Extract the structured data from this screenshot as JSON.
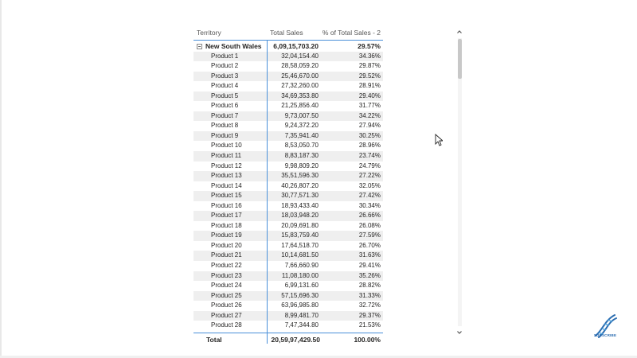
{
  "table": {
    "headers": [
      "Territory",
      "Total Sales",
      "% of Total Sales - 2"
    ],
    "group": {
      "name": "New South Wales",
      "sales": "6,09,15,703.20",
      "pct": "29.57%"
    },
    "rows": [
      {
        "name": "Product 1",
        "sales": "32,04,154.40",
        "pct": "34.36%"
      },
      {
        "name": "Product 2",
        "sales": "28,58,059.20",
        "pct": "29.87%"
      },
      {
        "name": "Product 3",
        "sales": "25,46,670.00",
        "pct": "29.52%"
      },
      {
        "name": "Product 4",
        "sales": "27,32,260.00",
        "pct": "28.91%"
      },
      {
        "name": "Product 5",
        "sales": "34,69,353.80",
        "pct": "29.40%"
      },
      {
        "name": "Product 6",
        "sales": "21,25,856.40",
        "pct": "31.77%"
      },
      {
        "name": "Product 7",
        "sales": "9,73,007.50",
        "pct": "34.22%"
      },
      {
        "name": "Product 8",
        "sales": "9,24,372.20",
        "pct": "27.94%"
      },
      {
        "name": "Product 9",
        "sales": "7,35,941.40",
        "pct": "30.25%"
      },
      {
        "name": "Product 10",
        "sales": "8,53,050.70",
        "pct": "28.96%"
      },
      {
        "name": "Product 11",
        "sales": "8,83,187.30",
        "pct": "23.74%"
      },
      {
        "name": "Product 12",
        "sales": "9,98,809.20",
        "pct": "24.79%"
      },
      {
        "name": "Product 13",
        "sales": "35,51,596.30",
        "pct": "27.22%"
      },
      {
        "name": "Product 14",
        "sales": "40,26,807.20",
        "pct": "32.05%"
      },
      {
        "name": "Product 15",
        "sales": "30,77,571.30",
        "pct": "27.42%"
      },
      {
        "name": "Product 16",
        "sales": "18,93,433.40",
        "pct": "30.34%"
      },
      {
        "name": "Product 17",
        "sales": "18,03,948.20",
        "pct": "26.66%"
      },
      {
        "name": "Product 18",
        "sales": "20,09,691.80",
        "pct": "26.08%"
      },
      {
        "name": "Product 19",
        "sales": "15,83,759.40",
        "pct": "27.59%"
      },
      {
        "name": "Product 20",
        "sales": "17,64,518.70",
        "pct": "26.70%"
      },
      {
        "name": "Product 21",
        "sales": "10,14,681.50",
        "pct": "31.63%"
      },
      {
        "name": "Product 22",
        "sales": "7,66,660.90",
        "pct": "29.41%"
      },
      {
        "name": "Product 23",
        "sales": "11,08,180.00",
        "pct": "35.26%"
      },
      {
        "name": "Product 24",
        "sales": "6,99,131.60",
        "pct": "28.82%"
      },
      {
        "name": "Product 25",
        "sales": "57,15,696.30",
        "pct": "31.33%"
      },
      {
        "name": "Product 26",
        "sales": "63,96,985.80",
        "pct": "32.72%"
      },
      {
        "name": "Product 27",
        "sales": "8,99,481.70",
        "pct": "29.37%"
      },
      {
        "name": "Product 28",
        "sales": "7,47,344.80",
        "pct": "21.53%"
      }
    ],
    "total": {
      "label": "Total",
      "sales": "20,59,97,429.50",
      "pct": "100.00%"
    }
  },
  "subscribe": {
    "label": "SUBSCRIBE",
    "icon": "dna-icon",
    "color": "#2b6cb0"
  },
  "colors": {
    "accent_line": "#4a90d9",
    "row_band": "#efefef"
  }
}
